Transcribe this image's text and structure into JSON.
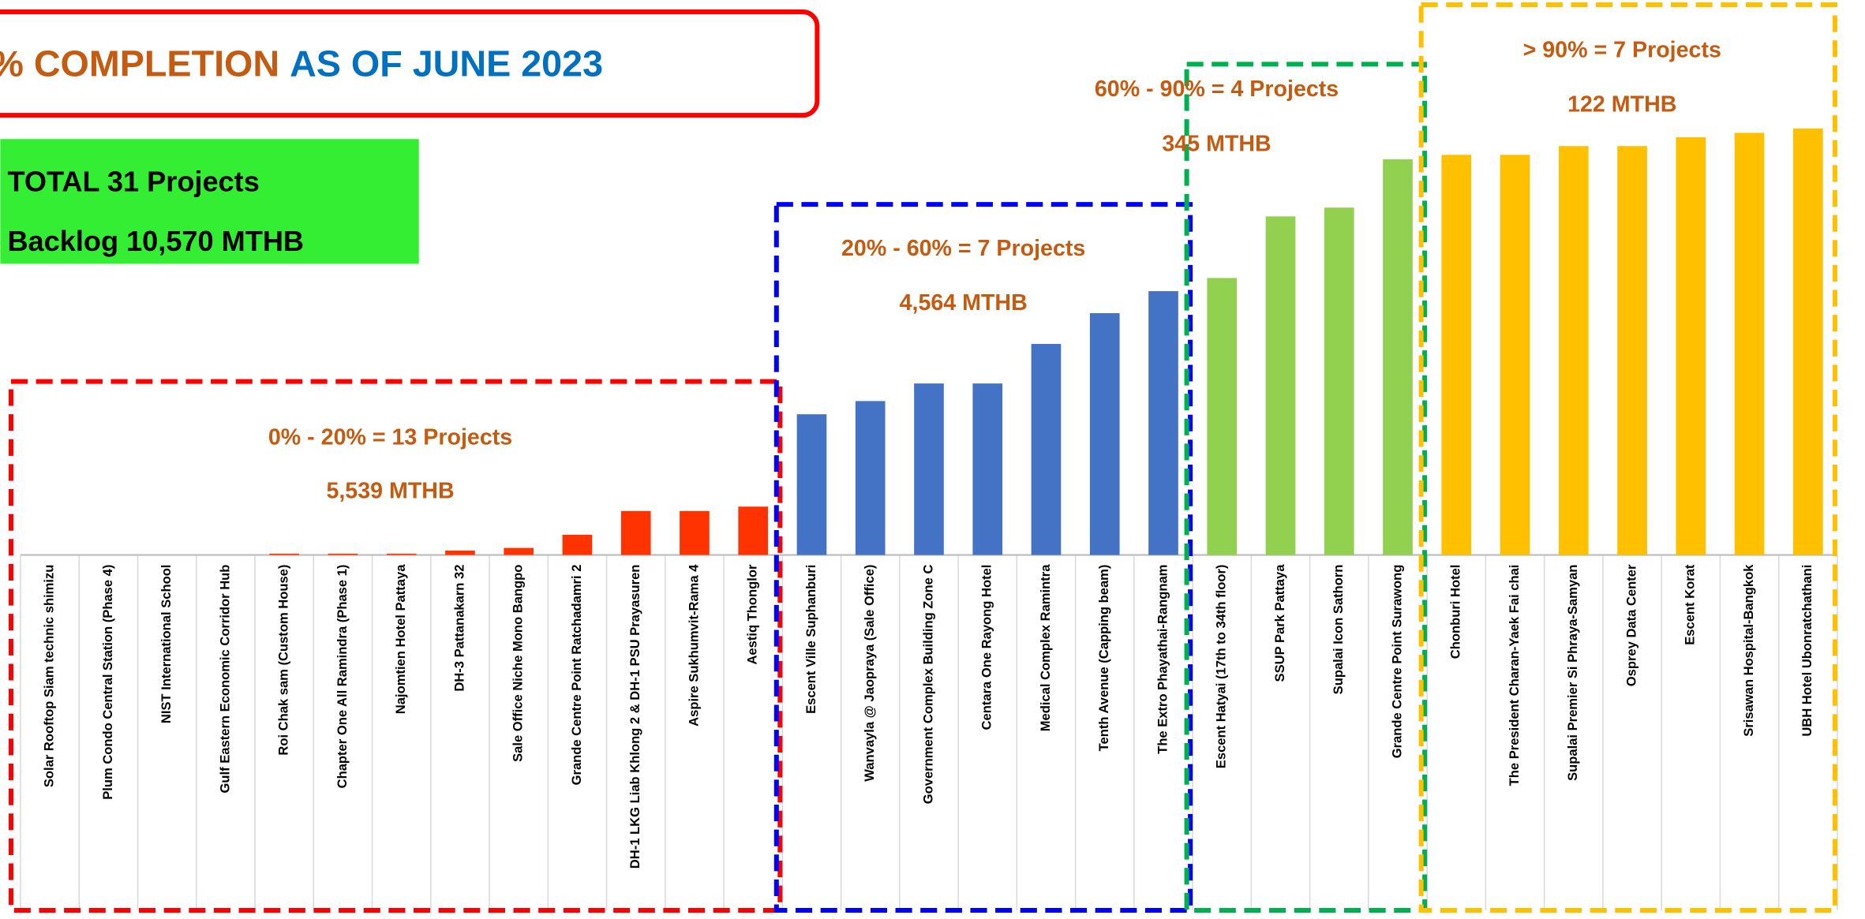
{
  "chart_data": {
    "type": "bar",
    "title_parts": [
      "% COMPLETION",
      "AS OF JUNE 2023"
    ],
    "summary": [
      "TOTAL 31 Projects",
      "Backlog 10,570 MTHB"
    ],
    "ylim": [
      0,
      100
    ],
    "groups": [
      {
        "label": "0% - 20% = 13 Projects",
        "total": "5,539 MTHB",
        "border_color": "#ff0000",
        "color": "#ff3300",
        "categories": [
          "Solar Rooftop Siam technic shimizu",
          "Plum Condo Central Station (Phase 4)",
          "NIST International School",
          "Gulf Eastern Economic Corridor Hub",
          "Roi Chak sam (Custom House)",
          "Chapter One All Ramindra (Phase 1)",
          "Najomtien Hotel Pattaya",
          "DH-3 Pattanakarn 32",
          "Sale Office Niche Mono Bangpo",
          "Grande Centre Point Ratchadamri 2",
          "DH-1 LKG Liab Khlong 2 & DH-1 PSU Prayasuren",
          "Aspire Sukhumvit-Rama 4",
          "Aestiq Thonglor"
        ],
        "values": [
          0,
          0,
          0,
          0,
          0.3,
          0.3,
          0.3,
          1,
          1.6,
          4.6,
          10,
          10,
          11
        ]
      },
      {
        "label": "20% - 60% = 7 Projects",
        "total": "4,564 MTHB",
        "border_color": "#0000ff",
        "color": "#4472c4",
        "categories": [
          "Escent Ville Suphanburi",
          "Wanvayla @ Jaopraya (Sale Office)",
          "Government Complex Building Zone C",
          "Centara One Rayong Hotel",
          "Medical Complex Ramintra",
          "Tenth Avenue (Capping beam)",
          "The Extro Phayathai-Rangnam"
        ],
        "values": [
          32,
          35,
          39,
          39,
          48,
          55,
          60
        ]
      },
      {
        "label": "60% - 90% = 4 Projects",
        "total": "345 MTHB",
        "border_color": "#00b050",
        "color": "#92d050",
        "categories": [
          "Escent Hatyai (17th to 34th floor)",
          "SSUP Park Pattaya",
          "Supalai Icon Sathorn",
          "Grande Centre Point Surawong"
        ],
        "values": [
          63,
          77,
          79,
          90
        ]
      },
      {
        "label": "> 90% = 7 Projects",
        "total": "122 MTHB",
        "border_color": "#ffc000",
        "color": "#ffc000",
        "categories": [
          "Chonburi Hotel",
          "The President Charan-Yaek Fai chai",
          "Supalai Premier Si Phraya-Samyan",
          "Osprey Data Center",
          "Escent Korat",
          "Srisawan Hospital-Bangkok",
          "UBH Hotel Ubonratchathani"
        ],
        "values": [
          91,
          91,
          93,
          93,
          95,
          96,
          97
        ]
      }
    ]
  }
}
